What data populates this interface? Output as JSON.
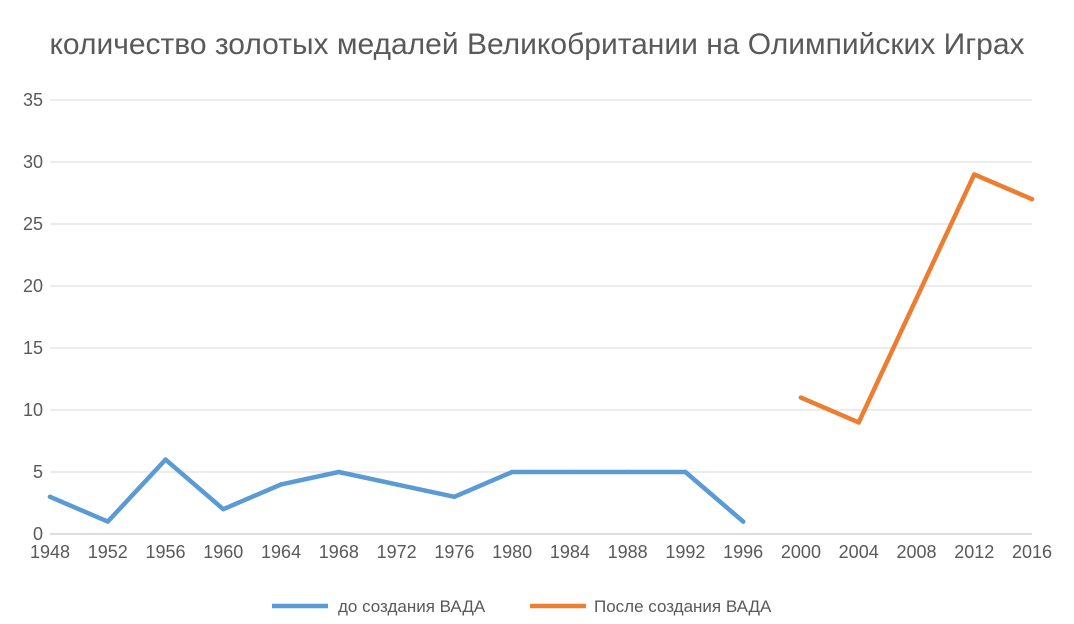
{
  "chart_data": {
    "type": "line",
    "title": "количество золотых медалей Великобритании на Олимпийских Играх",
    "categories": [
      "1948",
      "1952",
      "1956",
      "1960",
      "1964",
      "1968",
      "1972",
      "1976",
      "1980",
      "1984",
      "1988",
      "1992",
      "1996",
      "2000",
      "2004",
      "2008",
      "2012",
      "2016"
    ],
    "series": [
      {
        "name": "до создания ВАДА",
        "color": "#5B9BD5",
        "values": [
          3,
          1,
          6,
          2,
          4,
          5,
          4,
          3,
          5,
          5,
          5,
          5,
          1,
          null,
          null,
          null,
          null,
          null
        ]
      },
      {
        "name": "После создания ВАДА",
        "color": "#ED7D31",
        "values": [
          null,
          null,
          null,
          null,
          null,
          null,
          null,
          null,
          null,
          null,
          null,
          null,
          null,
          11,
          9,
          19,
          29,
          27
        ]
      }
    ],
    "ylim": [
      0,
      35
    ],
    "yticks": [
      0,
      5,
      10,
      15,
      20,
      25,
      30,
      35
    ],
    "xlabel": "",
    "ylabel": "",
    "grid": true,
    "legend": "bottom"
  }
}
